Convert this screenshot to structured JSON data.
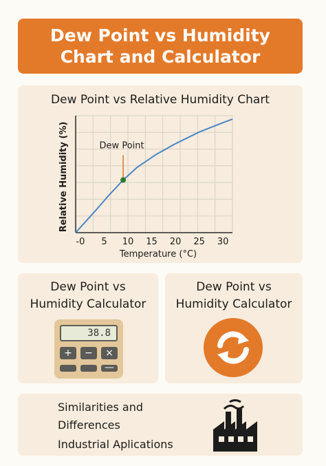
{
  "banner": {
    "line1": "Dew Point vs Humidity",
    "line2": "Chart and Calculator"
  },
  "chart_card": {
    "title": "Dew Point vs Relative Humidity Chart"
  },
  "chart_data": {
    "type": "line",
    "title": "Dew Point vs Relative Humidity Chart",
    "xlabel": "Temperature (°C)",
    "ylabel": "Relative Humidity (%)",
    "x_tick_labels": [
      "-0",
      "5",
      "10",
      "15",
      "20",
      "25",
      "30"
    ],
    "x_tick_values": [
      0,
      5,
      10,
      15,
      20,
      25,
      30
    ],
    "xlim": [
      -1,
      32
    ],
    "ylim": [
      0,
      100
    ],
    "grid": true,
    "series": [
      {
        "x": [
          -1,
          3,
          6,
          9,
          12,
          16,
          20,
          25,
          30,
          32
        ],
        "y": [
          0,
          18,
          32,
          45,
          56,
          67,
          76,
          86,
          94,
          97
        ]
      }
    ],
    "annotation": {
      "label": "Dew Point",
      "x": 9,
      "y": 45
    },
    "colors": {
      "line": "#4a86c8",
      "marker": "#2d7a2d",
      "leader": "#d07a2a",
      "grid": "#d6d1c6"
    }
  },
  "calculator_left": {
    "heading_line1": "Dew Point vs",
    "heading_line2": "Humidity Calculator",
    "display": "38.8",
    "keys": [
      "+",
      "−",
      "×",
      "",
      "",
      "—"
    ]
  },
  "calculator_right": {
    "heading_line1": "Dew Point vs",
    "heading_line2": "Humidity Calculator",
    "icon": "refresh-icon"
  },
  "bottom": {
    "line1": "Similarities and",
    "line2": "Differences",
    "line3": "Industrial Aplications",
    "icon": "factory-icon"
  },
  "colors": {
    "accent": "#e37a2a",
    "card": "#f7ecdd",
    "page": "#fdfbf6"
  }
}
